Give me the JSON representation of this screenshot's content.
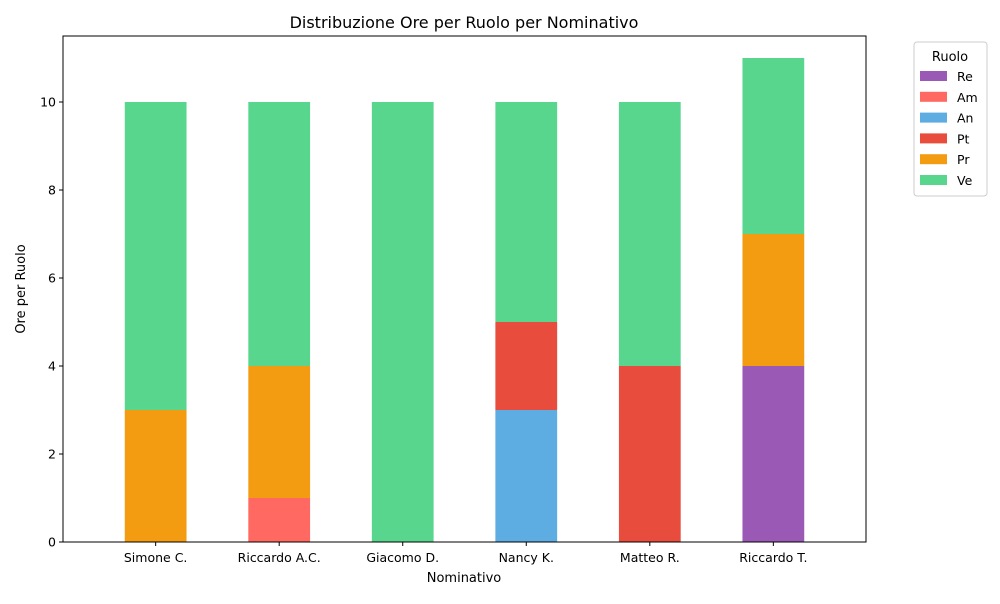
{
  "chart_data": {
    "type": "bar",
    "stacked": true,
    "title": "Distribuzione Ore per Ruolo per Nominativo",
    "xlabel": "Nominativo",
    "ylabel": "Ore per Ruolo",
    "ylim": [
      0,
      11.5
    ],
    "yticks": [
      0,
      2,
      4,
      6,
      8,
      10
    ],
    "categories": [
      "Simone C.",
      "Riccardo A.C.",
      "Giacomo D.",
      "Nancy K.",
      "Matteo R.",
      "Riccardo T."
    ],
    "series": [
      {
        "name": "Re",
        "color": "#9b59b6",
        "values": [
          0,
          0,
          0,
          0,
          0,
          4
        ]
      },
      {
        "name": "Am",
        "color": "#ff6961",
        "values": [
          0,
          1,
          0,
          0,
          0,
          0
        ]
      },
      {
        "name": "An",
        "color": "#5dade2",
        "values": [
          0,
          0,
          0,
          3,
          0,
          0
        ]
      },
      {
        "name": "Pt",
        "color": "#e74c3c",
        "values": [
          0,
          0,
          0,
          2,
          4,
          0
        ]
      },
      {
        "name": "Pr",
        "color": "#f39c12",
        "values": [
          3,
          3,
          0,
          0,
          0,
          3
        ]
      },
      {
        "name": "Ve",
        "color": "#58d68d",
        "values": [
          7,
          6,
          10,
          5,
          6,
          4
        ]
      }
    ],
    "legend": {
      "title": "Ruolo",
      "placement": "outside-right-top"
    },
    "grid": false
  }
}
